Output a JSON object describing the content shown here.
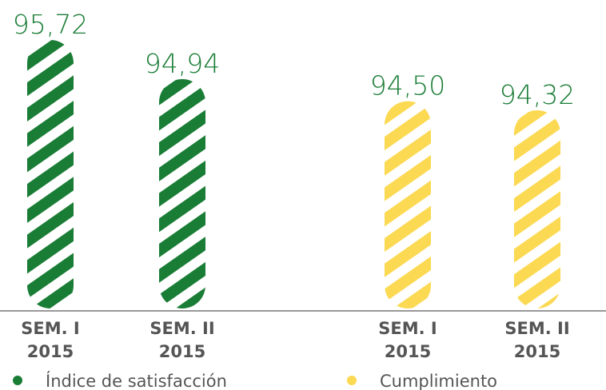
{
  "chart_data": {
    "type": "bar",
    "categories": [
      [
        "SEM. I",
        "2015"
      ],
      [
        "SEM. II",
        "2015"
      ],
      [
        "SEM. I",
        "2015"
      ],
      [
        "SEM. II",
        "2015"
      ]
    ],
    "series": [
      {
        "name": "Índice de satisfacción",
        "color": "#1a7d36",
        "values": [
          95.72,
          94.94,
          null,
          null
        ],
        "value_labels": [
          "95,72",
          "94,94",
          null,
          null
        ]
      },
      {
        "name": "Cumplimiento",
        "color": "#fcd952",
        "values": [
          null,
          null,
          94.5,
          94.32
        ],
        "value_labels": [
          null,
          null,
          "94,50",
          "94,32"
        ]
      }
    ]
  }
}
